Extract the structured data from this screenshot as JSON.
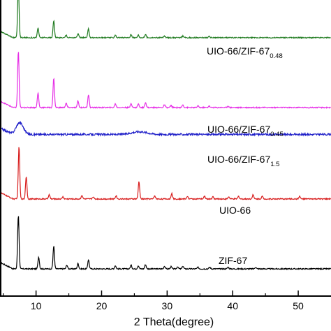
{
  "chart_data": {
    "type": "line",
    "xlabel": "2 Theta(degree)",
    "ylabel": "",
    "xlim": [
      4.5,
      55
    ],
    "x_ticks": [
      10,
      20,
      30,
      40,
      50
    ],
    "grid": false,
    "legend": "none",
    "series": [
      {
        "name": "ZIF-67",
        "label_main": "ZIF-67",
        "label_sub": "",
        "color": "#000000",
        "baseline": 0.0,
        "peaks": [
          {
            "x": 7.3,
            "h": 1.0
          },
          {
            "x": 10.4,
            "h": 0.22
          },
          {
            "x": 12.7,
            "h": 0.42
          },
          {
            "x": 14.7,
            "h": 0.07
          },
          {
            "x": 16.4,
            "h": 0.1
          },
          {
            "x": 18.0,
            "h": 0.17
          },
          {
            "x": 22.1,
            "h": 0.06
          },
          {
            "x": 24.5,
            "h": 0.07
          },
          {
            "x": 25.6,
            "h": 0.06
          },
          {
            "x": 26.7,
            "h": 0.08
          },
          {
            "x": 29.6,
            "h": 0.05
          },
          {
            "x": 30.6,
            "h": 0.04
          },
          {
            "x": 31.6,
            "h": 0.04
          },
          {
            "x": 32.4,
            "h": 0.05
          },
          {
            "x": 34.7,
            "h": 0.03
          },
          {
            "x": 36.5,
            "h": 0.03
          },
          {
            "x": 39.3,
            "h": 0.03
          },
          {
            "x": 43.5,
            "h": 0.03
          }
        ]
      },
      {
        "name": "UIO-66",
        "label_main": "UIO-66",
        "label_sub": "",
        "color": "#d81e1e",
        "baseline": 1.3,
        "peaks": [
          {
            "x": 7.4,
            "h": 0.98
          },
          {
            "x": 8.5,
            "h": 0.42
          },
          {
            "x": 12.0,
            "h": 0.08
          },
          {
            "x": 14.1,
            "h": 0.04
          },
          {
            "x": 17.0,
            "h": 0.07
          },
          {
            "x": 18.7,
            "h": 0.04
          },
          {
            "x": 22.2,
            "h": 0.06
          },
          {
            "x": 25.7,
            "h": 0.32
          },
          {
            "x": 28.1,
            "h": 0.06
          },
          {
            "x": 30.7,
            "h": 0.1
          },
          {
            "x": 33.1,
            "h": 0.05
          },
          {
            "x": 35.7,
            "h": 0.05
          },
          {
            "x": 37.0,
            "h": 0.04
          },
          {
            "x": 39.4,
            "h": 0.04
          },
          {
            "x": 40.9,
            "h": 0.05
          },
          {
            "x": 43.1,
            "h": 0.08
          },
          {
            "x": 44.5,
            "h": 0.05
          },
          {
            "x": 50.2,
            "h": 0.05
          }
        ]
      },
      {
        "name": "UIO-66/ZIF-67 1.5",
        "label_main": "UIO-66/ZIF-67",
        "label_sub": "1.5",
        "color": "#1e1ec8",
        "baseline": 2.5,
        "peaks": [
          {
            "x": 7.5,
            "h": 0.22
          },
          {
            "x": 25.8,
            "h": 0.05
          }
        ]
      },
      {
        "name": "UIO-66/ZIF-67 0.45",
        "label_main": "UIO-66/ZIF-67",
        "label_sub": "0.45",
        "color": "#e62ee6",
        "baseline": 3.0,
        "peaks": [
          {
            "x": 7.3,
            "h": 1.05
          },
          {
            "x": 10.3,
            "h": 0.27
          },
          {
            "x": 12.7,
            "h": 0.55
          },
          {
            "x": 14.6,
            "h": 0.08
          },
          {
            "x": 16.4,
            "h": 0.12
          },
          {
            "x": 18.0,
            "h": 0.24
          },
          {
            "x": 22.1,
            "h": 0.07
          },
          {
            "x": 24.5,
            "h": 0.08
          },
          {
            "x": 25.6,
            "h": 0.07
          },
          {
            "x": 26.7,
            "h": 0.1
          },
          {
            "x": 29.6,
            "h": 0.05
          },
          {
            "x": 30.6,
            "h": 0.04
          },
          {
            "x": 32.4,
            "h": 0.05
          },
          {
            "x": 34.7,
            "h": 0.03
          },
          {
            "x": 36.4,
            "h": 0.03
          },
          {
            "x": 39.3,
            "h": 0.03
          }
        ]
      },
      {
        "name": "UIO-66/ZIF-67 0.48",
        "label_main": "UIO-66/ZIF-67",
        "label_sub": "0.48",
        "color": "#1e7a1e",
        "baseline": 4.3,
        "peaks": [
          {
            "x": 7.3,
            "h": 0.95
          },
          {
            "x": 10.3,
            "h": 0.18
          },
          {
            "x": 12.7,
            "h": 0.32
          },
          {
            "x": 14.6,
            "h": 0.05
          },
          {
            "x": 16.4,
            "h": 0.07
          },
          {
            "x": 18.0,
            "h": 0.16
          },
          {
            "x": 22.1,
            "h": 0.05
          },
          {
            "x": 24.5,
            "h": 0.06
          },
          {
            "x": 25.6,
            "h": 0.05
          },
          {
            "x": 26.7,
            "h": 0.06
          },
          {
            "x": 29.6,
            "h": 0.03
          },
          {
            "x": 32.4,
            "h": 0.03
          },
          {
            "x": 36.4,
            "h": 0.02
          }
        ]
      }
    ]
  }
}
